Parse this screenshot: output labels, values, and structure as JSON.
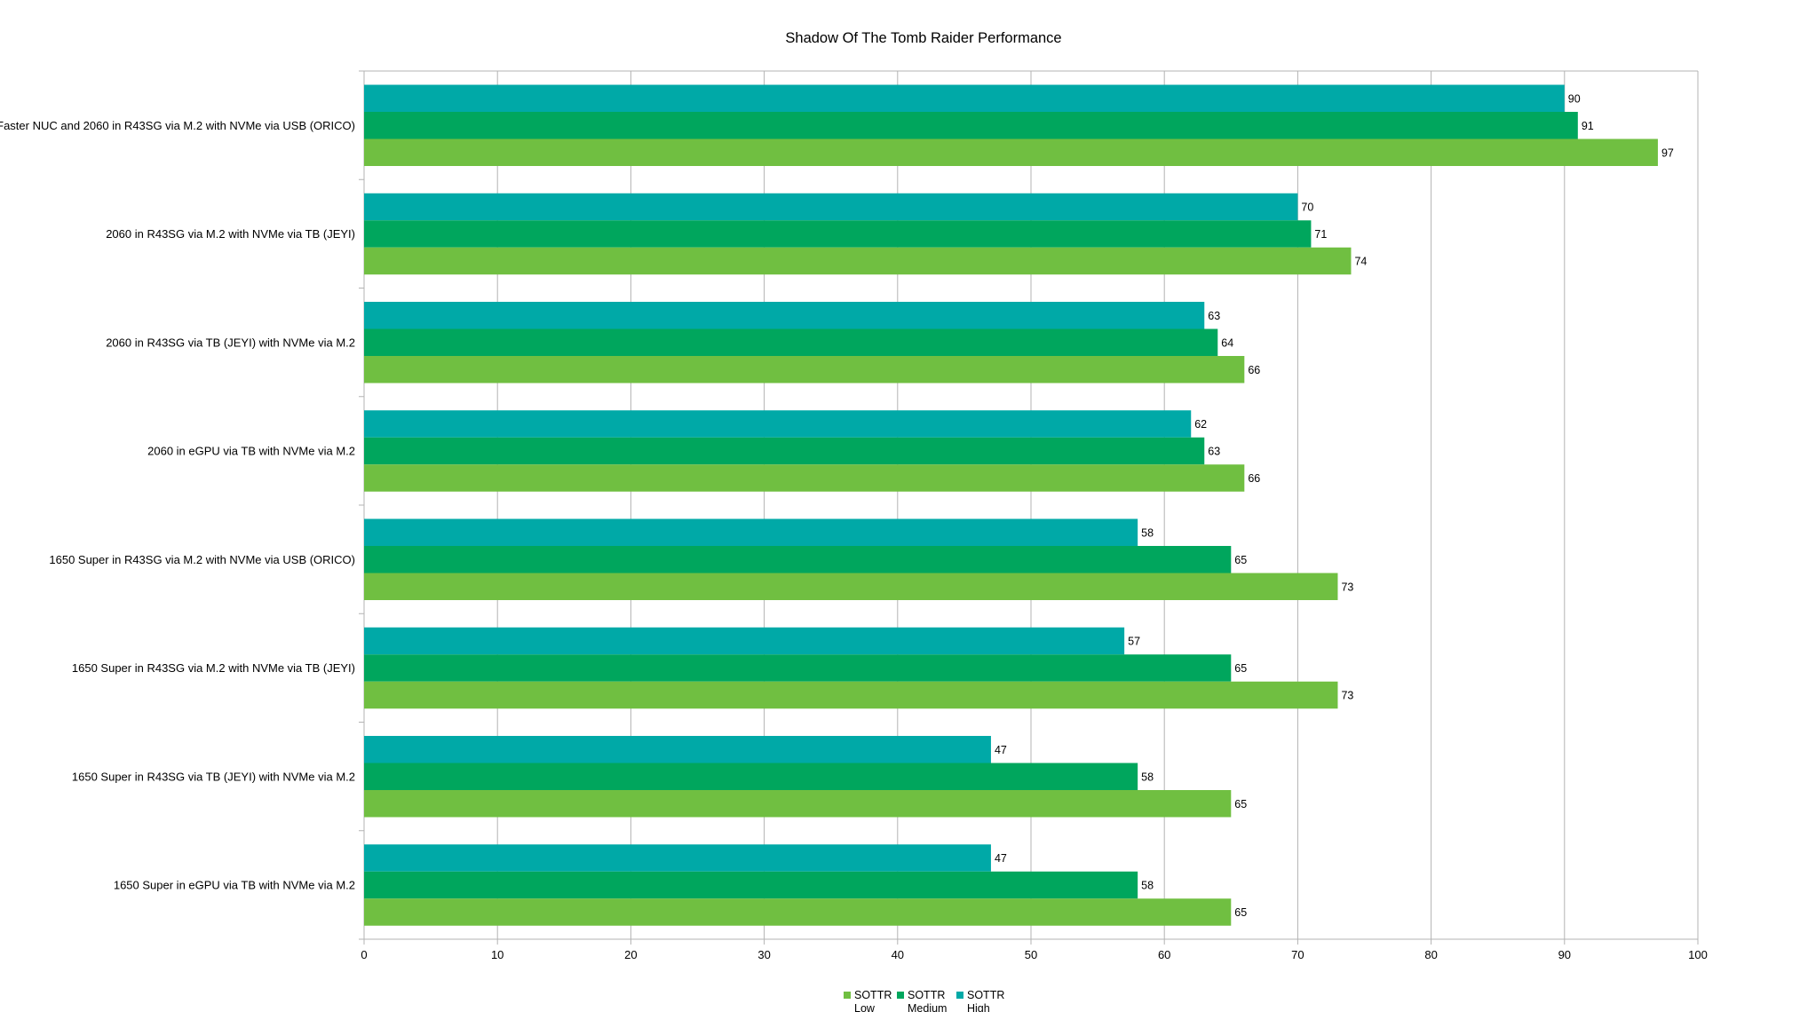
{
  "chart_data": {
    "type": "bar",
    "orientation": "horizontal",
    "title": "Shadow Of The Tomb Raider Performance",
    "xlabel": "",
    "ylabel": "",
    "xlim": [
      0,
      100
    ],
    "x_ticks": [
      0,
      10,
      20,
      30,
      40,
      50,
      60,
      70,
      80,
      90,
      100
    ],
    "grid": true,
    "legend_position": "bottom",
    "categories": [
      "Faster NUC and 2060 in R43SG via M.2 with NVMe via USB (ORICO)",
      "2060 in R43SG via M.2 with NVMe via TB (JEYI)",
      "2060 in R43SG via TB (JEYI) with NVMe via M.2",
      "2060 in eGPU via TB with NVMe via M.2",
      "1650 Super in R43SG via M.2 with NVMe via USB (ORICO)",
      "1650 Super in R43SG via M.2 with NVMe via TB (JEYI)",
      "1650 Super in R43SG via TB (JEYI) with NVMe via M.2",
      "1650 Super in eGPU via TB with NVMe via M.2"
    ],
    "series": [
      {
        "name": "SOTTR Low",
        "legend_lines": [
          "SOTTR",
          "Low"
        ],
        "color": "#70bf41",
        "values": [
          97,
          74,
          66,
          66,
          73,
          73,
          65,
          65
        ]
      },
      {
        "name": "SOTTR Medium",
        "legend_lines": [
          "SOTTR",
          "Medium"
        ],
        "color": "#00a65d",
        "values": [
          91,
          71,
          64,
          63,
          65,
          65,
          58,
          58
        ]
      },
      {
        "name": "SOTTR High",
        "legend_lines": [
          "SOTTR",
          "High"
        ],
        "color": "#00a9a7",
        "values": [
          90,
          70,
          63,
          62,
          58,
          57,
          47,
          47
        ]
      }
    ]
  }
}
